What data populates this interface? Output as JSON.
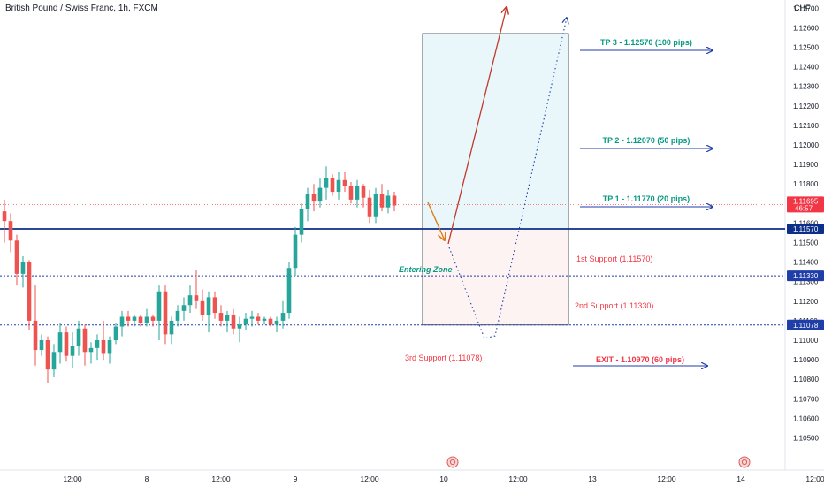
{
  "header": {
    "symbol_title": "British Pound / Swiss Franc, 1h, FXCM",
    "currency": "CHF"
  },
  "price_axis": {
    "ticks": [
      "1.12700",
      "1.12600",
      "1.12500",
      "1.12400",
      "1.12300",
      "1.12200",
      "1.12100",
      "1.12000",
      "1.11900",
      "1.11800",
      "1.11700",
      "1.11600",
      "1.11500",
      "1.11400",
      "1.11300",
      "1.11200",
      "1.11100",
      "1.11000",
      "1.10900",
      "1.10800",
      "1.10700",
      "1.10600",
      "1.10500"
    ],
    "current_price": "1.11695",
    "countdown": "46:57",
    "badges": [
      {
        "label": "1.11570",
        "price": 1.1157,
        "color": "#0c2f8a"
      },
      {
        "label": "1.11330",
        "price": 1.1133,
        "color": "#1f3ea8"
      },
      {
        "label": "1.11078",
        "price": 1.11078,
        "color": "#1f3ea8"
      }
    ]
  },
  "time_axis": {
    "ticks": [
      {
        "label": "12:00",
        "bar": 11
      },
      {
        "label": "8",
        "bar": 23
      },
      {
        "label": "12:00",
        "bar": 35
      },
      {
        "label": "9",
        "bar": 47
      },
      {
        "label": "12:00",
        "bar": 59
      },
      {
        "label": "10",
        "bar": 71
      },
      {
        "label": "12:00",
        "bar": 83
      },
      {
        "label": "13",
        "bar": 95
      },
      {
        "label": "12:00",
        "bar": 107
      },
      {
        "label": "14",
        "bar": 119
      },
      {
        "label": "12:00",
        "bar": 131
      }
    ]
  },
  "annotations": {
    "tp3": "TP 3 - 1.12570 (100 pips)",
    "tp2": "TP 2 - 1.12070 (50 pips)",
    "tp1": "TP 1 - 1.11770 (20 pips)",
    "support1": "1st Support  (1.11570)",
    "support2": "2nd Support (1.11330)",
    "support3": "3rd Support (1.11078)",
    "exit": "EXIT - 1.10970 (60 pips)",
    "entering_zone": "Entering Zone"
  },
  "colors": {
    "up": "#26a69a",
    "down": "#ef5350",
    "tp_text": "#089981",
    "support_text": "#f23645",
    "line_blue": "#1f3ea8",
    "arrow_up": "#c0392b",
    "arrow_entry": "#e07b1a",
    "target_zone": "#e9f7fb",
    "stop_zone": "#fdf3f2"
  },
  "chart_data": {
    "type": "candlestick",
    "title": "British Pound / Swiss Franc, 1h, FXCM",
    "ylim": [
      1.1045,
      1.1278
    ],
    "levels": {
      "current": 1.11695,
      "support_1": 1.1157,
      "support_2": 1.1133,
      "support_3": 1.11078,
      "tp_1": 1.1177,
      "tp_2": 1.1207,
      "tp_3": 1.1257,
      "exit": 1.1097
    },
    "candles": [
      [
        1.1166,
        1.1172,
        1.115,
        1.1161
      ],
      [
        1.1161,
        1.1165,
        1.1145,
        1.1151
      ],
      [
        1.1151,
        1.1154,
        1.1128,
        1.1134
      ],
      [
        1.1134,
        1.1143,
        1.1127,
        1.114
      ],
      [
        1.114,
        1.1141,
        1.1105,
        1.111
      ],
      [
        1.111,
        1.1128,
        1.1087,
        1.1095
      ],
      [
        1.1095,
        1.1103,
        1.1092,
        1.11
      ],
      [
        1.11,
        1.1102,
        1.1078,
        1.1085
      ],
      [
        1.1085,
        1.1098,
        1.1081,
        1.1094
      ],
      [
        1.1094,
        1.1109,
        1.1088,
        1.1104
      ],
      [
        1.1104,
        1.1107,
        1.1089,
        1.1092
      ],
      [
        1.1092,
        1.1104,
        1.1086,
        1.1097
      ],
      [
        1.1097,
        1.111,
        1.1092,
        1.1106
      ],
      [
        1.1106,
        1.1108,
        1.1087,
        1.1094
      ],
      [
        1.1094,
        1.1099,
        1.1088,
        1.1096
      ],
      [
        1.1096,
        1.1103,
        1.109,
        1.11
      ],
      [
        1.11,
        1.111,
        1.109,
        1.1093
      ],
      [
        1.1093,
        1.1102,
        1.1088,
        1.11
      ],
      [
        1.11,
        1.1109,
        1.1098,
        1.1107
      ],
      [
        1.1107,
        1.1115,
        1.1102,
        1.1112
      ],
      [
        1.1112,
        1.1115,
        1.1107,
        1.111
      ],
      [
        1.111,
        1.1113,
        1.1107,
        1.1112
      ],
      [
        1.1112,
        1.1113,
        1.1107,
        1.1109
      ],
      [
        1.1109,
        1.1116,
        1.1107,
        1.1112
      ],
      [
        1.1112,
        1.1113,
        1.1107,
        1.111
      ],
      [
        1.111,
        1.1128,
        1.11,
        1.1125
      ],
      [
        1.1125,
        1.1128,
        1.1098,
        1.1103
      ],
      [
        1.1103,
        1.1112,
        1.1098,
        1.111
      ],
      [
        1.111,
        1.1118,
        1.1107,
        1.1115
      ],
      [
        1.1115,
        1.1122,
        1.111,
        1.1118
      ],
      [
        1.1118,
        1.1128,
        1.1114,
        1.1123
      ],
      [
        1.1123,
        1.1136,
        1.1116,
        1.112
      ],
      [
        1.112,
        1.1126,
        1.111,
        1.1113
      ],
      [
        1.1113,
        1.1125,
        1.1104,
        1.1122
      ],
      [
        1.1122,
        1.1125,
        1.1111,
        1.1114
      ],
      [
        1.1114,
        1.1118,
        1.1107,
        1.111
      ],
      [
        1.111,
        1.1115,
        1.1104,
        1.1113
      ],
      [
        1.1113,
        1.1116,
        1.1103,
        1.1106
      ],
      [
        1.1106,
        1.1112,
        1.1099,
        1.1108
      ],
      [
        1.1108,
        1.1114,
        1.1105,
        1.1111
      ],
      [
        1.1111,
        1.1115,
        1.1107,
        1.1112
      ],
      [
        1.1112,
        1.1114,
        1.1108,
        1.111
      ],
      [
        1.111,
        1.1112,
        1.1108,
        1.1111
      ],
      [
        1.1111,
        1.1112,
        1.1107,
        1.1108
      ],
      [
        1.1108,
        1.1112,
        1.1104,
        1.111
      ],
      [
        1.111,
        1.112,
        1.1106,
        1.1114
      ],
      [
        1.1114,
        1.114,
        1.1111,
        1.1137
      ],
      [
        1.1137,
        1.1158,
        1.1133,
        1.1154
      ],
      [
        1.1154,
        1.117,
        1.115,
        1.1167
      ],
      [
        1.1167,
        1.1178,
        1.1161,
        1.1175
      ],
      [
        1.1175,
        1.118,
        1.1166,
        1.1171
      ],
      [
        1.1171,
        1.1183,
        1.1168,
        1.1178
      ],
      [
        1.1178,
        1.1189,
        1.1172,
        1.1183
      ],
      [
        1.1183,
        1.1185,
        1.1174,
        1.1176
      ],
      [
        1.1176,
        1.1186,
        1.1172,
        1.1182
      ],
      [
        1.1182,
        1.1186,
        1.1176,
        1.1179
      ],
      [
        1.1179,
        1.1181,
        1.117,
        1.1172
      ],
      [
        1.1172,
        1.1182,
        1.1168,
        1.1179
      ],
      [
        1.1179,
        1.118,
        1.1168,
        1.1173
      ],
      [
        1.1173,
        1.1177,
        1.116,
        1.1163
      ],
      [
        1.1163,
        1.1178,
        1.116,
        1.1175
      ],
      [
        1.1175,
        1.118,
        1.1166,
        1.1168
      ],
      [
        1.1168,
        1.1177,
        1.1165,
        1.1174
      ],
      [
        1.1174,
        1.1176,
        1.1166,
        1.1169
      ]
    ],
    "projection": {
      "type": "line",
      "x_hour": [
        63,
        66,
        70
      ],
      "y": [
        1.11735,
        1.1157,
        1.1275
      ],
      "dotted_x_hour": [
        66,
        70,
        74,
        80
      ],
      "dotted_y": [
        1.1157,
        1.1109,
        1.1109,
        1.1275
      ]
    }
  }
}
